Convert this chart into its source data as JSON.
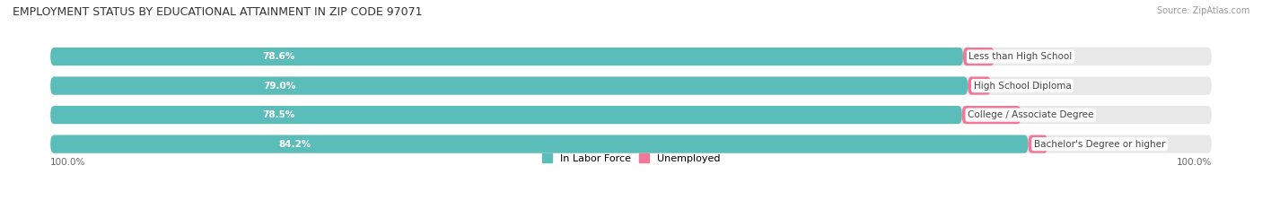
{
  "title": "EMPLOYMENT STATUS BY EDUCATIONAL ATTAINMENT IN ZIP CODE 97071",
  "source": "Source: ZipAtlas.com",
  "categories": [
    "Less than High School",
    "High School Diploma",
    "College / Associate Degree",
    "Bachelor's Degree or higher"
  ],
  "labor_force": [
    78.6,
    79.0,
    78.5,
    84.2
  ],
  "unemployed": [
    2.7,
    2.0,
    5.1,
    1.7
  ],
  "color_labor": "#5bbdb9",
  "color_unemployed": "#f07898",
  "color_bg": "#e8e8e8",
  "left_label": "100.0%",
  "right_label": "100.0%",
  "legend_labor": "In Labor Force",
  "legend_unemployed": "Unemployed",
  "title_fontsize": 9,
  "source_fontsize": 7,
  "bar_fontsize": 7.5,
  "legend_fontsize": 8
}
